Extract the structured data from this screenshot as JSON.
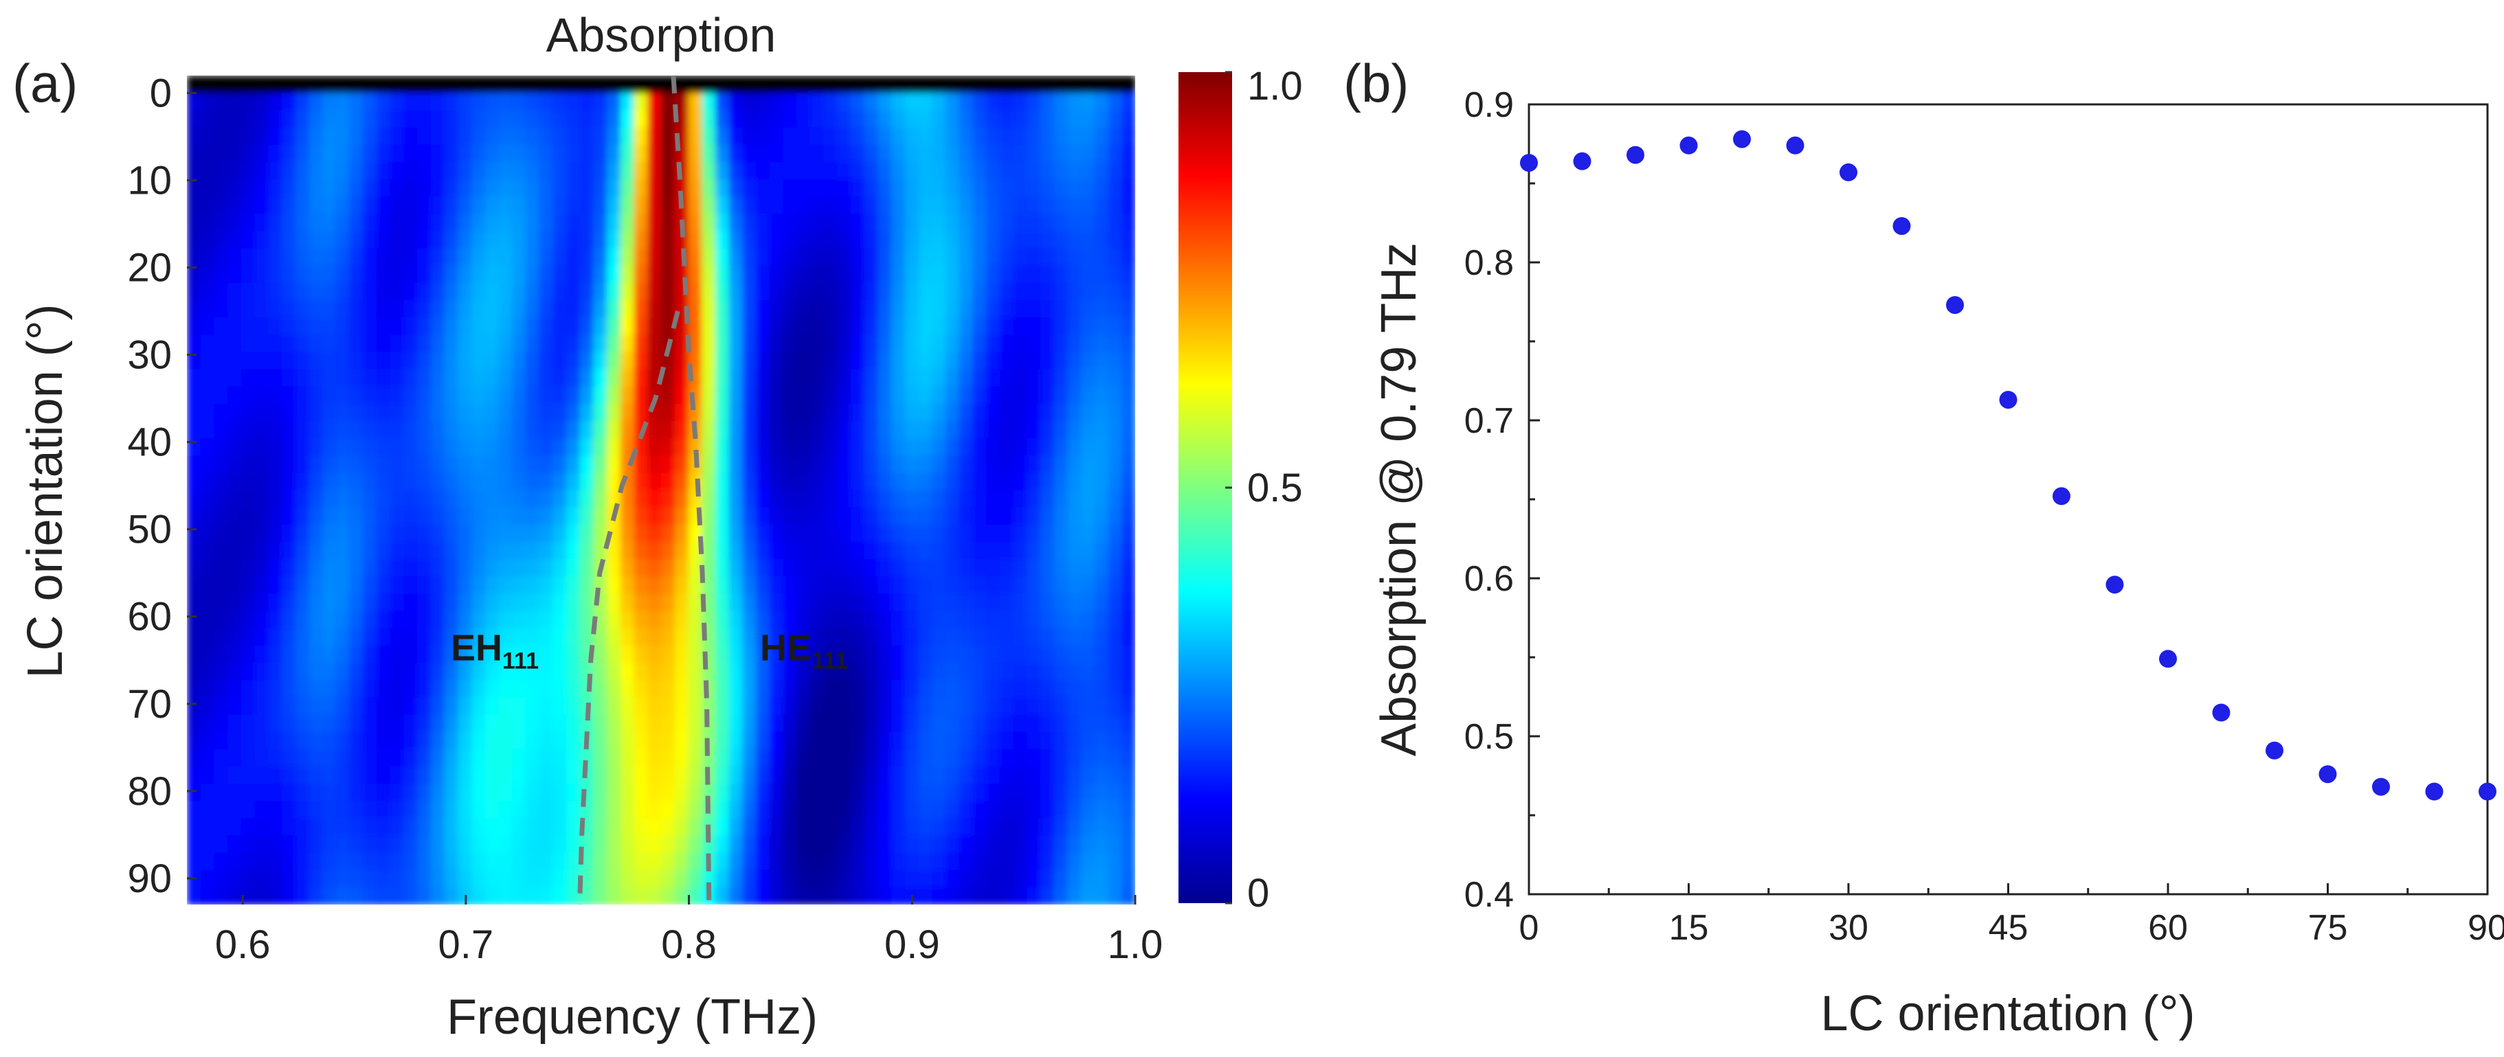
{
  "chart_data": [
    {
      "panel": "(a)",
      "type": "heatmap",
      "title": "Absorption",
      "xlabel": "Frequency (THz)",
      "ylabel": "LC orientation (°)",
      "xlim": [
        0.575,
        1.0
      ],
      "ylim": [
        -2,
        93
      ],
      "xticks": [
        "0.6",
        "0.7",
        "0.8",
        "0.9",
        "1.0"
      ],
      "xtick_values": [
        0.6,
        0.7,
        0.8,
        0.9,
        1.0
      ],
      "yticks": [
        "0",
        "10",
        "20",
        "30",
        "40",
        "50",
        "60",
        "70",
        "80",
        "90"
      ],
      "ytick_values": [
        0,
        10,
        20,
        30,
        40,
        50,
        60,
        70,
        80,
        90
      ],
      "colorbar": {
        "range": [
          0,
          1.0
        ],
        "ticks": [
          "0",
          "0.5",
          "1.0"
        ],
        "tick_values": [
          0,
          0.5,
          1.0
        ],
        "colormap": "jet"
      },
      "annotations": [
        {
          "text": "EH",
          "sub": "111",
          "freq": 0.745,
          "angle": 65
        },
        {
          "text": "HE",
          "sub": "111",
          "freq": 0.83,
          "angle": 65
        }
      ],
      "mode_curves": [
        {
          "name": "EH111",
          "points": [
            [
              0.795,
              25
            ],
            [
              0.785,
              35
            ],
            [
              0.77,
              45
            ],
            [
              0.76,
              55
            ],
            [
              0.756,
              65
            ],
            [
              0.754,
              75
            ],
            [
              0.752,
              85
            ],
            [
              0.751,
              93
            ]
          ]
        },
        {
          "name": "HE111",
          "points": [
            [
              0.793,
              -2
            ],
            [
              0.796,
              10
            ],
            [
              0.798,
              20
            ],
            [
              0.8,
              30
            ],
            [
              0.803,
              40
            ],
            [
              0.806,
              55
            ],
            [
              0.808,
              70
            ],
            [
              0.809,
              93
            ]
          ]
        }
      ]
    },
    {
      "panel": "(b)",
      "type": "scatter",
      "xlabel": "LC orientation (°)",
      "ylabel": "Absorption @ 0.79 THz",
      "xlim": [
        0,
        90
      ],
      "ylim": [
        0.4,
        0.9
      ],
      "xticks": [
        "0",
        "15",
        "30",
        "45",
        "60",
        "75",
        "90"
      ],
      "xtick_values": [
        0,
        15,
        30,
        45,
        60,
        75,
        90
      ],
      "yticks": [
        "0.4",
        "0.5",
        "0.6",
        "0.7",
        "0.8",
        "0.9"
      ],
      "ytick_values": [
        0.4,
        0.5,
        0.6,
        0.7,
        0.8,
        0.9
      ],
      "series": [
        {
          "name": "Absorption @ 0.79 THz",
          "color": "#1f1fe6",
          "x": [
            0,
            5,
            10,
            15,
            20,
            25,
            30,
            35,
            40,
            45,
            50,
            55,
            60,
            65,
            70,
            75,
            80,
            85,
            90
          ],
          "y": [
            0.863,
            0.864,
            0.868,
            0.874,
            0.878,
            0.874,
            0.857,
            0.823,
            0.773,
            0.713,
            0.652,
            0.596,
            0.549,
            0.515,
            0.491,
            0.476,
            0.468,
            0.465,
            0.465
          ]
        }
      ]
    }
  ]
}
